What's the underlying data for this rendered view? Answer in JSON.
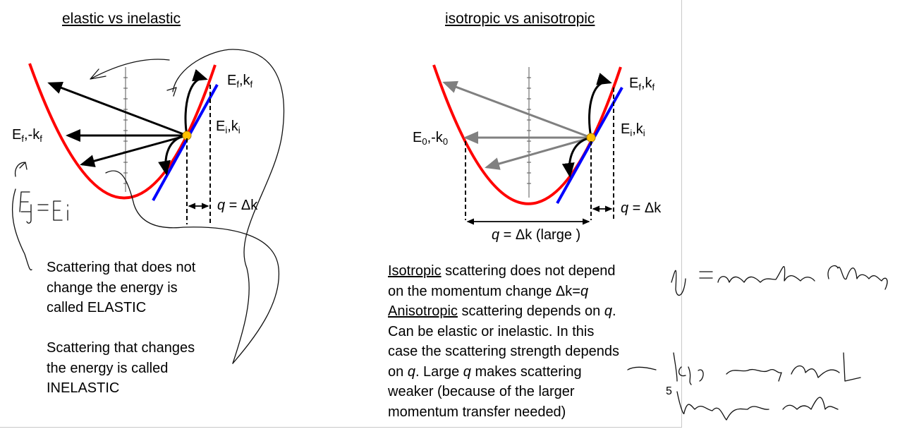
{
  "slide": {
    "page_number": "5",
    "left": {
      "title": "elastic vs inelastic",
      "label_final": {
        "E": "E",
        "E_sub": "f",
        "k": "k",
        "k_sub": "f"
      },
      "label_initial": {
        "E": "E",
        "E_sub": "i",
        "k": "k",
        "k_sub": "i"
      },
      "label_backscatter": {
        "E": "E",
        "E_sub": "f",
        "k": "-k",
        "k_sub": "f"
      },
      "label_q_italic": "q",
      "label_q_rest": " = Δk",
      "para1": [
        "Scattering that does not",
        "change the energy is",
        "called ELASTIC"
      ],
      "para2": [
        "Scattering that changes",
        "the energy is called",
        "INELASTIC"
      ]
    },
    "right": {
      "title": "isotropic vs anisotropic",
      "label_final": {
        "E": "E",
        "E_sub": "f",
        "k": "k",
        "k_sub": "f"
      },
      "label_initial": {
        "E": "E",
        "E_sub": "i",
        "k": "k",
        "k_sub": "i"
      },
      "label_backscatter": {
        "E": "E",
        "E_sub": "0",
        "k": "-k",
        "k_sub": "0"
      },
      "label_q_italic": "q",
      "label_q_rest": " = Δk",
      "label_q_large_italic": "q",
      "label_q_large_rest": " = Δk (large )",
      "para": {
        "l1_u": "Isotropic",
        "l1_rest": " scattering does not depend",
        "l2_pre": "on the momentum change Δk=",
        "l2_q": "q",
        "l3_u": "Anisotropic",
        "l3_pre": " scattering depends on ",
        "l3_q": "q",
        "l3_post": ".",
        "l4": "Can be elastic or inelastic. In this",
        "l5": "case the scattering strength depends",
        "l6_pre": "on ",
        "l6_q": "q",
        "l6_mid": ". Large ",
        "l6_q2": "q",
        "l6_post": " makes scattering",
        "l7": "weaker (because of the larger",
        "l8": "momentum transfer needed)"
      }
    }
  },
  "colors": {
    "parabola": "#ff0000",
    "line": "#0000ff",
    "dot": "#ffc000",
    "gray_arrow": "#808080"
  }
}
